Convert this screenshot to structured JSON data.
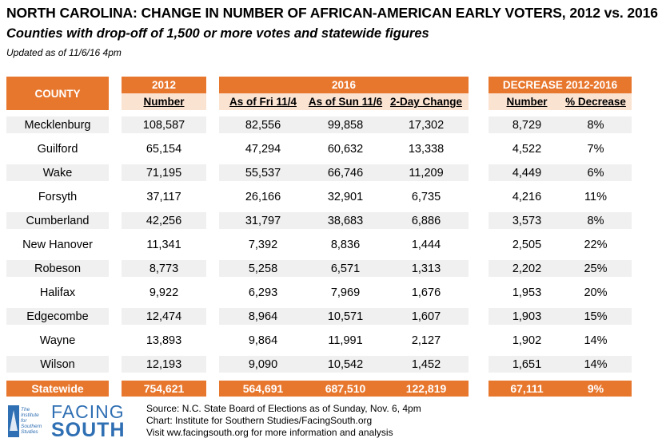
{
  "title": "NORTH CAROLINA: CHANGE IN NUMBER OF AFRICAN-AMERICAN EARLY VOTERS, 2012 vs. 2016",
  "subtitle": "Counties with drop-off of 1,500 or more votes and statewide figures",
  "updated": "Updated as of 11/6/16 4pm",
  "headers": {
    "county": "COUNTY",
    "g2012": "2012",
    "g2016": "2016",
    "gdec": "DECREASE 2012-2016"
  },
  "subheaders": {
    "number2012": "Number",
    "fri": "As of Fri 11/4",
    "sun": "As of Sun 11/6",
    "change": "2-Day Change",
    "dec_number": "Number",
    "dec_pct": "% Decrease"
  },
  "rows": [
    {
      "county": "Mecklenburg",
      "n2012": "108,587",
      "fri": "82,556",
      "sun": "99,858",
      "change": "17,302",
      "dec": "8,729",
      "pct": "8%"
    },
    {
      "county": "Guilford",
      "n2012": "65,154",
      "fri": "47,294",
      "sun": "60,632",
      "change": "13,338",
      "dec": "4,522",
      "pct": "7%"
    },
    {
      "county": "Wake",
      "n2012": "71,195",
      "fri": "55,537",
      "sun": "66,746",
      "change": "11,209",
      "dec": "4,449",
      "pct": "6%"
    },
    {
      "county": "Forsyth",
      "n2012": "37,117",
      "fri": "26,166",
      "sun": "32,901",
      "change": "6,735",
      "dec": "4,216",
      "pct": "11%"
    },
    {
      "county": "Cumberland",
      "n2012": "42,256",
      "fri": "31,797",
      "sun": "38,683",
      "change": "6,886",
      "dec": "3,573",
      "pct": "8%"
    },
    {
      "county": "New Hanover",
      "n2012": "11,341",
      "fri": "7,392",
      "sun": "8,836",
      "change": "1,444",
      "dec": "2,505",
      "pct": "22%"
    },
    {
      "county": "Robeson",
      "n2012": "8,773",
      "fri": "5,258",
      "sun": "6,571",
      "change": "1,313",
      "dec": "2,202",
      "pct": "25%"
    },
    {
      "county": "Halifax",
      "n2012": "9,922",
      "fri": "6,293",
      "sun": "7,969",
      "change": "1,676",
      "dec": "1,953",
      "pct": "20%"
    },
    {
      "county": "Edgecombe",
      "n2012": "12,474",
      "fri": "8,964",
      "sun": "10,571",
      "change": "1,607",
      "dec": "1,903",
      "pct": "15%"
    },
    {
      "county": "Wayne",
      "n2012": "13,893",
      "fri": "9,864",
      "sun": "11,991",
      "change": "2,127",
      "dec": "1,902",
      "pct": "14%"
    },
    {
      "county": "Wilson",
      "n2012": "12,193",
      "fri": "9,090",
      "sun": "10,542",
      "change": "1,452",
      "dec": "1,651",
      "pct": "14%"
    }
  ],
  "statewide": {
    "county": "Statewide",
    "n2012": "754,621",
    "fri": "564,691",
    "sun": "687,510",
    "change": "122,819",
    "dec": "67,111",
    "pct": "9%"
  },
  "logo": {
    "emblem_lines": [
      "The",
      "Institute",
      "for",
      "Southern",
      "Studies"
    ],
    "word1": "FACING",
    "word2": "SOUTH"
  },
  "footer": [
    "Source: N.C. State Board of Elections as of Sunday, Nov. 6, 4pm",
    "Chart: Institute for Southern Studies/FacingSouth.org",
    "Visit ww.facingsouth.org for more information and analysis"
  ],
  "colors": {
    "accent": "#e8772e",
    "subheader_bg": "#fbe3d2",
    "stripe": "#f0f0f0",
    "brand": "#2f6fb3"
  }
}
